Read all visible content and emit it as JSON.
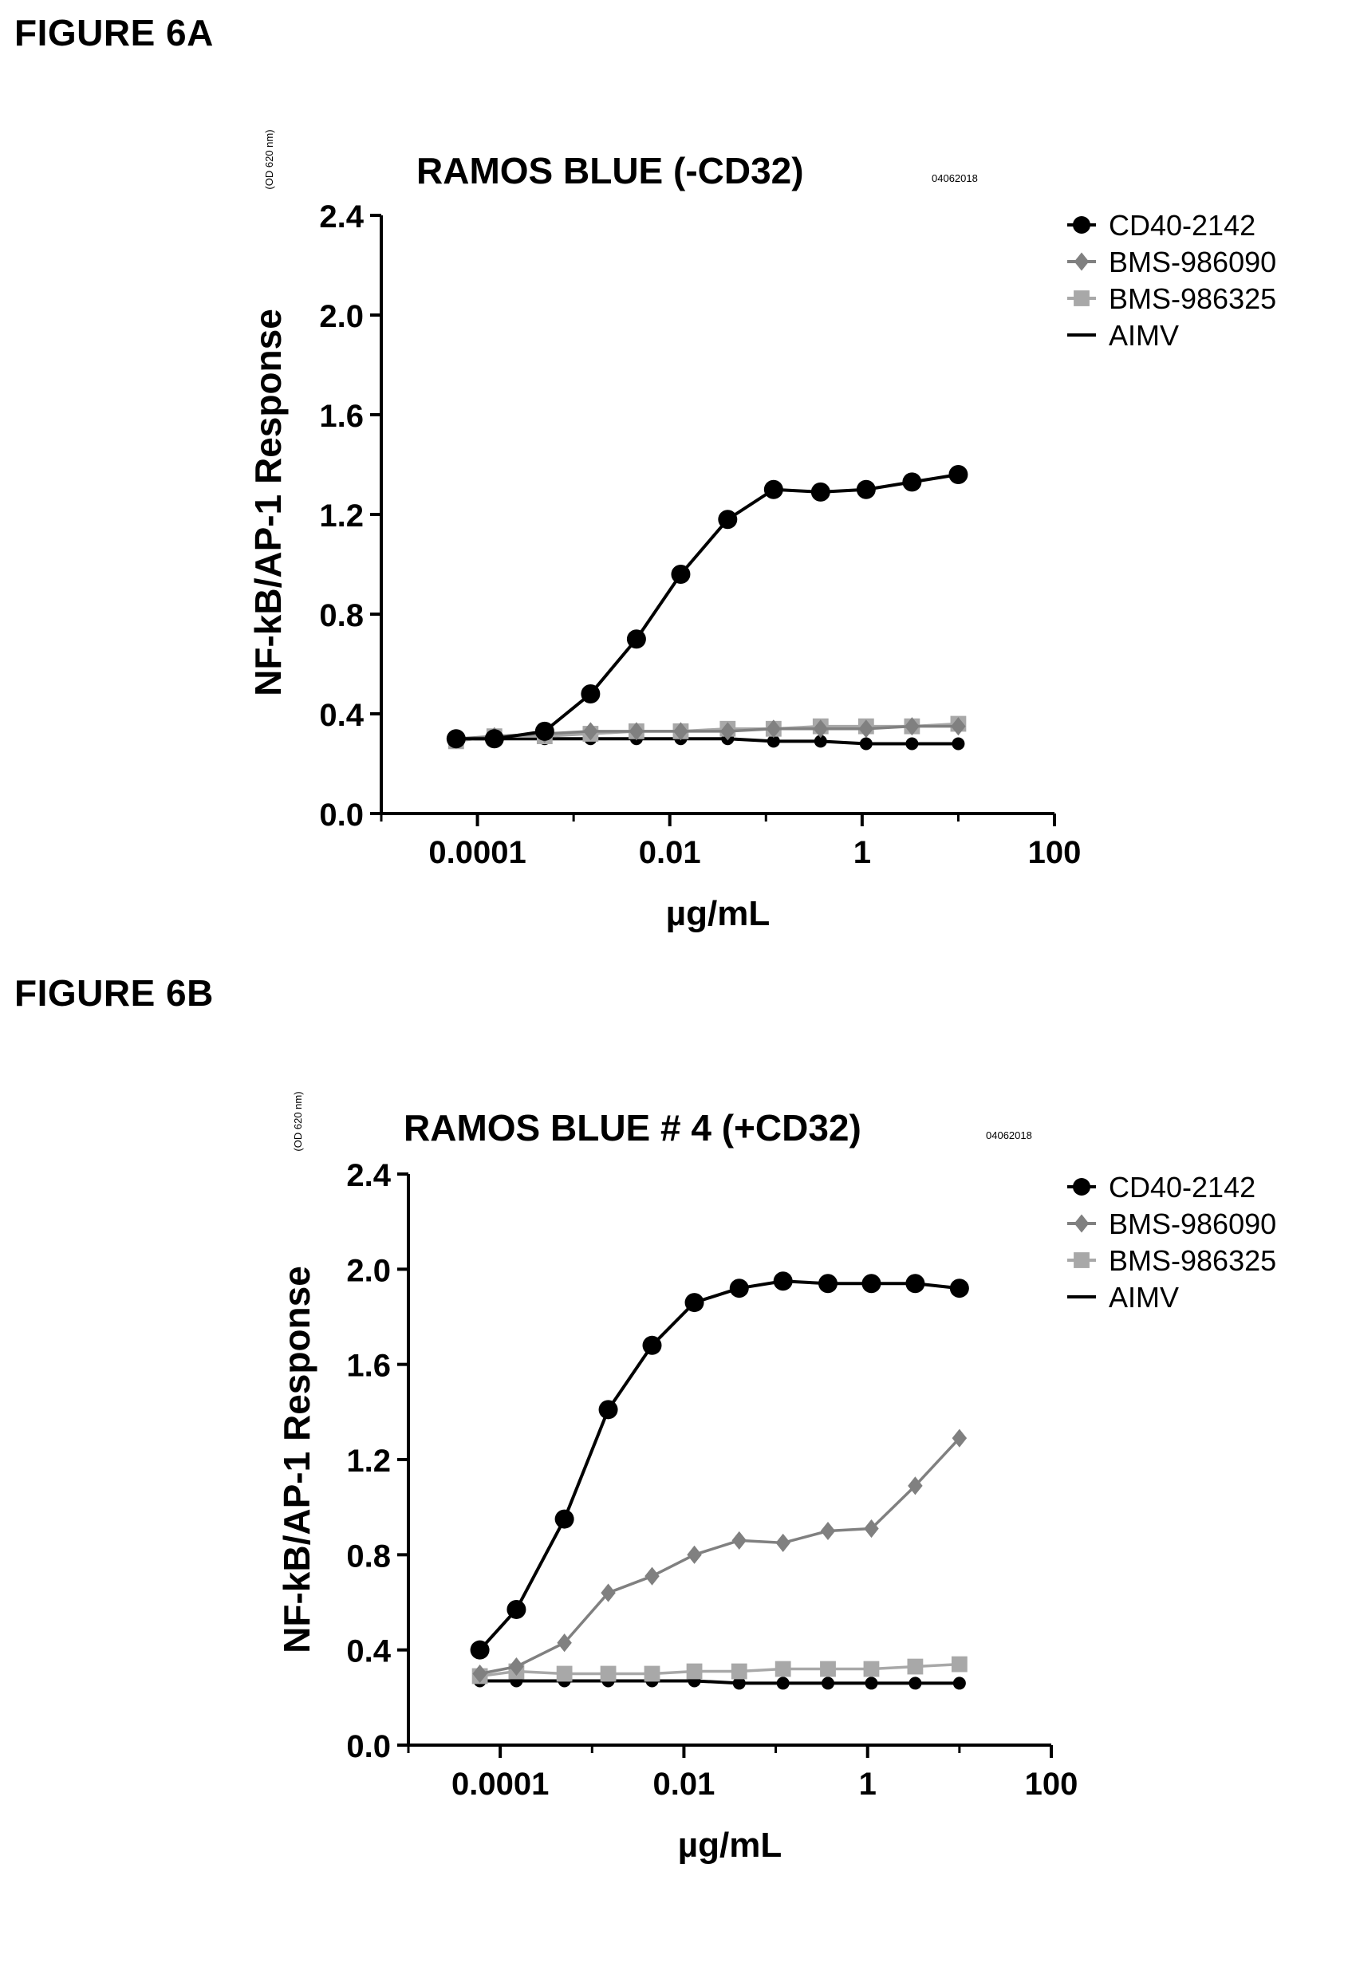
{
  "figures": [
    {
      "label": "FIGURE 6A"
    },
    {
      "label": "FIGURE 6B"
    }
  ],
  "chart_data": [
    {
      "type": "line",
      "title": "RAMOS BLUE (-CD32)",
      "title_note": "04062018",
      "xlabel": "µg/mL",
      "ylabel": "NF-kB/AP-1 Response",
      "ylabel_note": "(OD 620 nm)",
      "x_scale": "log",
      "xlim": [
        1e-05,
        100
      ],
      "ylim": [
        0.0,
        2.4
      ],
      "x_ticks": [
        "0.0001",
        "0.01",
        "1",
        "100"
      ],
      "x_tick_values": [
        0.0001,
        0.01,
        1,
        100
      ],
      "y_ticks": [
        "0.0",
        "0.4",
        "0.8",
        "1.2",
        "1.6",
        "2.0",
        "2.4"
      ],
      "y_tick_values": [
        0.0,
        0.4,
        0.8,
        1.2,
        1.6,
        2.0,
        2.4
      ],
      "legend_position": "right",
      "grid": false,
      "x": [
        6e-05,
        0.00015,
        0.0005,
        0.0015,
        0.0045,
        0.013,
        0.04,
        0.12,
        0.37,
        1.1,
        3.3,
        10
      ],
      "series": [
        {
          "name": "CD40-2142",
          "marker": "circle",
          "color": "#000000",
          "values": [
            0.3,
            0.3,
            0.33,
            0.48,
            0.7,
            0.96,
            1.18,
            1.3,
            1.29,
            1.3,
            1.33,
            1.36
          ]
        },
        {
          "name": "BMS-986090",
          "marker": "diamond",
          "color": "#808080",
          "values": [
            0.3,
            0.31,
            0.32,
            0.33,
            0.33,
            0.33,
            0.33,
            0.34,
            0.34,
            0.34,
            0.35,
            0.35
          ]
        },
        {
          "name": "BMS-986325",
          "marker": "square",
          "color": "#a8a8a8",
          "values": [
            0.29,
            0.31,
            0.31,
            0.32,
            0.33,
            0.33,
            0.34,
            0.34,
            0.35,
            0.35,
            0.35,
            0.36
          ]
        },
        {
          "name": "AIMV",
          "marker": "none",
          "color": "#000000",
          "values": [
            0.3,
            0.3,
            0.3,
            0.3,
            0.3,
            0.3,
            0.3,
            0.29,
            0.29,
            0.28,
            0.28,
            0.28
          ]
        }
      ]
    },
    {
      "type": "line",
      "title": "RAMOS BLUE  # 4 (+CD32)",
      "title_note": "04062018",
      "xlabel": "µg/mL",
      "ylabel": "NF-kB/AP-1 Response",
      "ylabel_note": "(OD 620 nm)",
      "x_scale": "log",
      "xlim": [
        1e-05,
        100
      ],
      "ylim": [
        0.0,
        2.4
      ],
      "x_ticks": [
        "0.0001",
        "0.01",
        "1",
        "100"
      ],
      "x_tick_values": [
        0.0001,
        0.01,
        1,
        100
      ],
      "y_ticks": [
        "0.0",
        "0.4",
        "0.8",
        "1.2",
        "1.6",
        "2.0",
        "2.4"
      ],
      "y_tick_values": [
        0.0,
        0.4,
        0.8,
        1.2,
        1.6,
        2.0,
        2.4
      ],
      "legend_position": "right",
      "grid": false,
      "x": [
        6e-05,
        0.00015,
        0.0005,
        0.0015,
        0.0045,
        0.013,
        0.04,
        0.12,
        0.37,
        1.1,
        3.3,
        10
      ],
      "series": [
        {
          "name": "CD40-2142",
          "marker": "circle",
          "color": "#000000",
          "values": [
            0.4,
            0.57,
            0.95,
            1.41,
            1.68,
            1.86,
            1.92,
            1.95,
            1.94,
            1.94,
            1.94,
            1.92
          ]
        },
        {
          "name": "BMS-986090",
          "marker": "diamond",
          "color": "#808080",
          "values": [
            0.3,
            0.33,
            0.43,
            0.64,
            0.71,
            0.8,
            0.86,
            0.85,
            0.9,
            0.91,
            1.09,
            1.29
          ]
        },
        {
          "name": "BMS-986325",
          "marker": "square",
          "color": "#a8a8a8",
          "values": [
            0.29,
            0.31,
            0.3,
            0.3,
            0.3,
            0.31,
            0.31,
            0.32,
            0.32,
            0.32,
            0.33,
            0.34
          ]
        },
        {
          "name": "AIMV",
          "marker": "none",
          "color": "#000000",
          "values": [
            0.27,
            0.27,
            0.27,
            0.27,
            0.27,
            0.27,
            0.26,
            0.26,
            0.26,
            0.26,
            0.26,
            0.26
          ]
        }
      ]
    }
  ]
}
